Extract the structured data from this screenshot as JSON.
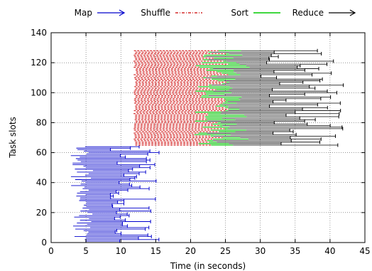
{
  "chart_data": {
    "type": "timeline",
    "xlabel": "Time (in seconds)",
    "ylabel": "Task slots",
    "xlim": [
      0,
      45
    ],
    "ylim": [
      0,
      140
    ],
    "x_ticks": [
      0,
      5,
      10,
      15,
      20,
      25,
      30,
      35,
      40,
      45
    ],
    "y_ticks": [
      0,
      20,
      40,
      60,
      80,
      100,
      120,
      140
    ],
    "grid": true,
    "legend_position": "top",
    "legend": [
      {
        "name": "Map",
        "color": "#0000cc",
        "style": "arrow"
      },
      {
        "name": "Shuffle",
        "color": "#cc0000",
        "style": "dash-dot"
      },
      {
        "name": "Sort",
        "color": "#00cc00",
        "style": "solid"
      },
      {
        "name": "Reduce",
        "color": "#000000",
        "style": "arrow"
      }
    ],
    "map_tasks": {
      "slots_from": 1,
      "slots_to": 64,
      "start_range": [
        2.8,
        6.0
      ],
      "end_range": [
        8.5,
        15.5
      ]
    },
    "reduce_tasks": {
      "slots_from": 65,
      "slots_to": 128,
      "shuffle_start_range": [
        11.8,
        12.2
      ],
      "shuffle_end_range": [
        20.5,
        25.5
      ],
      "sort_end_range": [
        21.5,
        28.5
      ],
      "reduce_end_range": [
        30.0,
        42.0
      ]
    }
  }
}
